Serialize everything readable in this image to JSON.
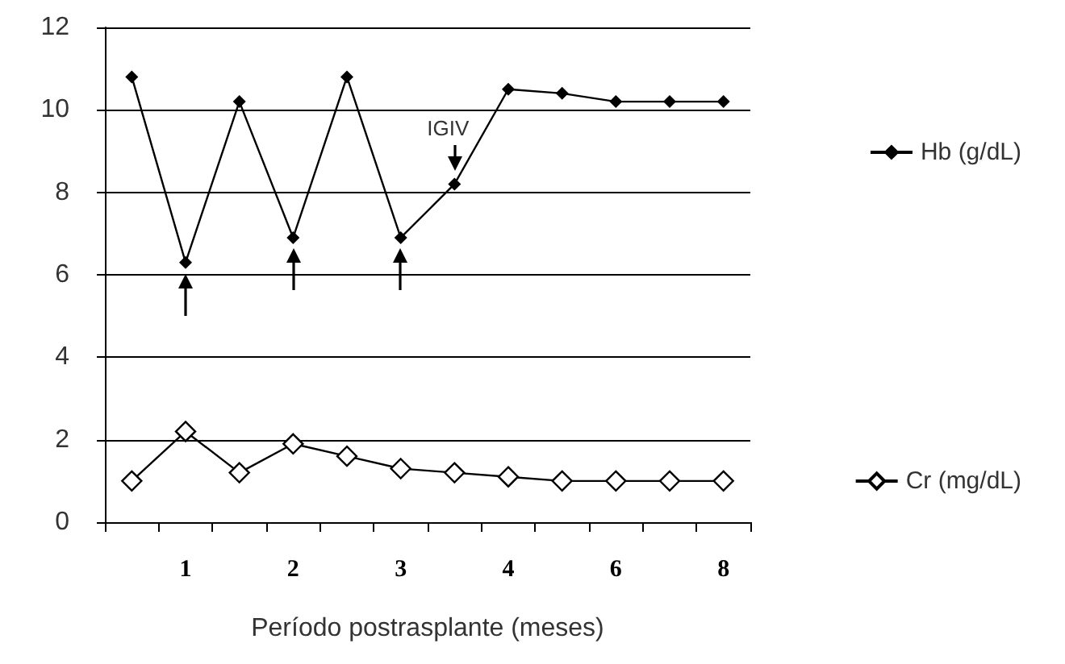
{
  "chart_data": {
    "type": "line",
    "xlabel": "Período postrasplante (meses)",
    "categories": [
      null,
      "1",
      null,
      "2",
      null,
      "3",
      null,
      "4",
      null,
      "6",
      null,
      "8"
    ],
    "series": [
      {
        "name": "Hb (g/dL)",
        "color": "#000000",
        "values": [
          10.8,
          6.3,
          10.2,
          6.9,
          10.8,
          6.9,
          8.2,
          10.5,
          10.4,
          10.2,
          10.2,
          10.2
        ]
      },
      {
        "name": "Cr (mg/dL)",
        "color": "#000000",
        "values": [
          1.0,
          2.2,
          1.2,
          1.9,
          1.6,
          1.3,
          1.2,
          1.1,
          1.0,
          1.0,
          1.0,
          1.0
        ]
      }
    ],
    "ylim": [
      0,
      12
    ],
    "yticks": [
      0,
      2,
      4,
      6,
      8,
      10,
      12
    ],
    "grid": "y",
    "legend": "right",
    "marker": "diamond",
    "line_style": "solid",
    "annotations": [
      "IGIV"
    ]
  }
}
